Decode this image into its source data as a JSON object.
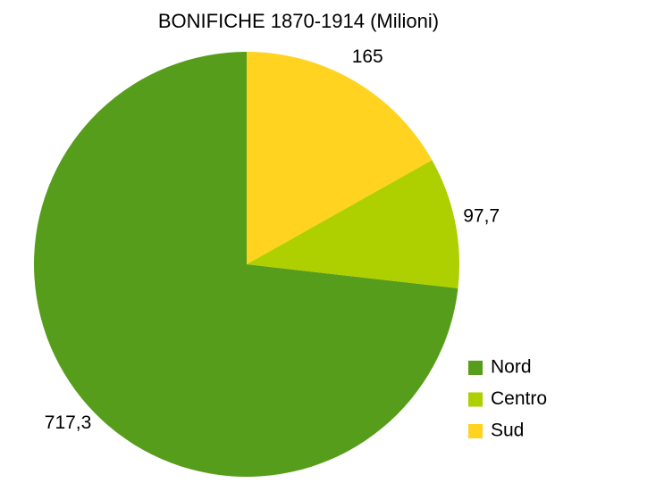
{
  "chart_data": {
    "type": "pie",
    "title": "BONIFICHE 1870-1914 (Milioni)",
    "categories": [
      "Nord",
      "Centro",
      "Sud"
    ],
    "values": [
      717.3,
      97.7,
      165
    ],
    "value_labels": [
      "717,3",
      "97,7",
      "165"
    ],
    "colors": [
      "#579d1c",
      "#aecf00",
      "#ffd320"
    ],
    "legend": "right"
  }
}
